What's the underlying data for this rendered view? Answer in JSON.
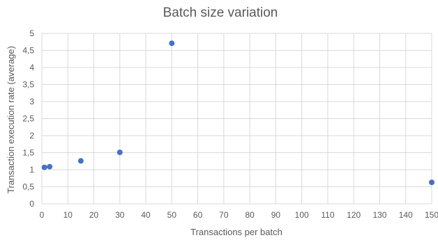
{
  "chart_data": {
    "type": "scatter",
    "title": "Batch size variation",
    "xlabel": "Transactions per batch",
    "ylabel": "Transaction execution rate (average)",
    "xlim": [
      0,
      150
    ],
    "ylim": [
      0,
      5
    ],
    "grid": true,
    "x_ticks": [
      "0",
      "10",
      "20",
      "30",
      "40",
      "50",
      "60",
      "70",
      "80",
      "90",
      "100",
      "110",
      "120",
      "130",
      "140",
      "150"
    ],
    "y_ticks": [
      "0",
      "0,5",
      "1",
      "1,5",
      "2",
      "2,5",
      "3",
      "3,5",
      "4",
      "4,5",
      "5"
    ],
    "points": [
      {
        "x": 1,
        "y": 1.07
      },
      {
        "x": 3,
        "y": 1.09
      },
      {
        "x": 15,
        "y": 1.26
      },
      {
        "x": 30,
        "y": 1.51
      },
      {
        "x": 50,
        "y": 4.71
      },
      {
        "x": 150,
        "y": 0.63
      }
    ],
    "point_color": "#4472c4"
  }
}
